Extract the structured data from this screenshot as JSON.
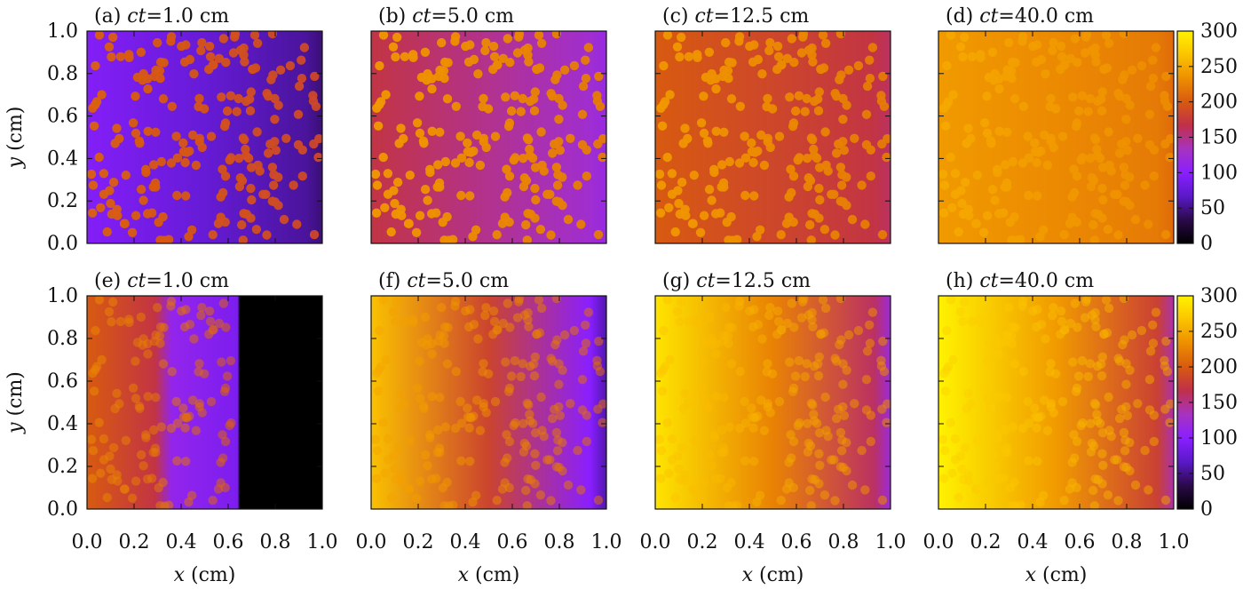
{
  "figure": {
    "colorscale": [
      "#000000",
      "#2b0a4a",
      "#5a19c8",
      "#8a1fff",
      "#a733c0",
      "#c0304a",
      "#d85a10",
      "#ee8f00",
      "#fbc400",
      "#fff200"
    ],
    "cbar_ticks": [
      "0",
      "50",
      "100",
      "150",
      "200",
      "250",
      "300"
    ],
    "cbar_range": [
      0,
      300
    ],
    "xlabel_var": "x",
    "xlabel_unit": " (cm)",
    "ylabel_var": "y",
    "ylabel_unit": " (cm)",
    "axis_ticks": [
      "0.0",
      "0.2",
      "0.4",
      "0.6",
      "0.8",
      "1.0"
    ],
    "title_var": "ct"
  },
  "chart_data": [
    {
      "type": "heatmap",
      "panel": "(a)",
      "title_value": "=1.0 cm",
      "row": 0,
      "base_left": 95,
      "base_right": 55,
      "particle": 205,
      "front": null
    },
    {
      "type": "heatmap",
      "panel": "(b)",
      "title_value": "=5.0 cm",
      "row": 0,
      "base_left": 170,
      "base_right": 125,
      "particle": 240,
      "front": null
    },
    {
      "type": "heatmap",
      "panel": "(c)",
      "title_value": "=12.5 cm",
      "row": 0,
      "base_left": 200,
      "base_right": 170,
      "particle": 240,
      "front": null
    },
    {
      "type": "heatmap",
      "panel": "(d)",
      "title_value": "=40.0 cm",
      "row": 0,
      "base_left": 240,
      "base_right": 220,
      "particle": 250,
      "front": null
    },
    {
      "type": "heatmap",
      "panel": "(e)",
      "title_value": "=1.0 cm",
      "row": 1,
      "base_left": 200,
      "base_right": 0,
      "particle": 230,
      "front": 0.65
    },
    {
      "type": "heatmap",
      "panel": "(f)",
      "title_value": "=5.0 cm",
      "row": 1,
      "base_left": 265,
      "base_right": 100,
      "particle": 250,
      "front": null
    },
    {
      "type": "heatmap",
      "panel": "(g)",
      "title_value": "=12.5 cm",
      "row": 1,
      "base_left": 290,
      "base_right": 160,
      "particle": 270,
      "front": null
    },
    {
      "type": "heatmap",
      "panel": "(h)",
      "title_value": "=40.0 cm",
      "row": 1,
      "base_left": 300,
      "base_right": 180,
      "particle": 280,
      "front": null
    }
  ]
}
